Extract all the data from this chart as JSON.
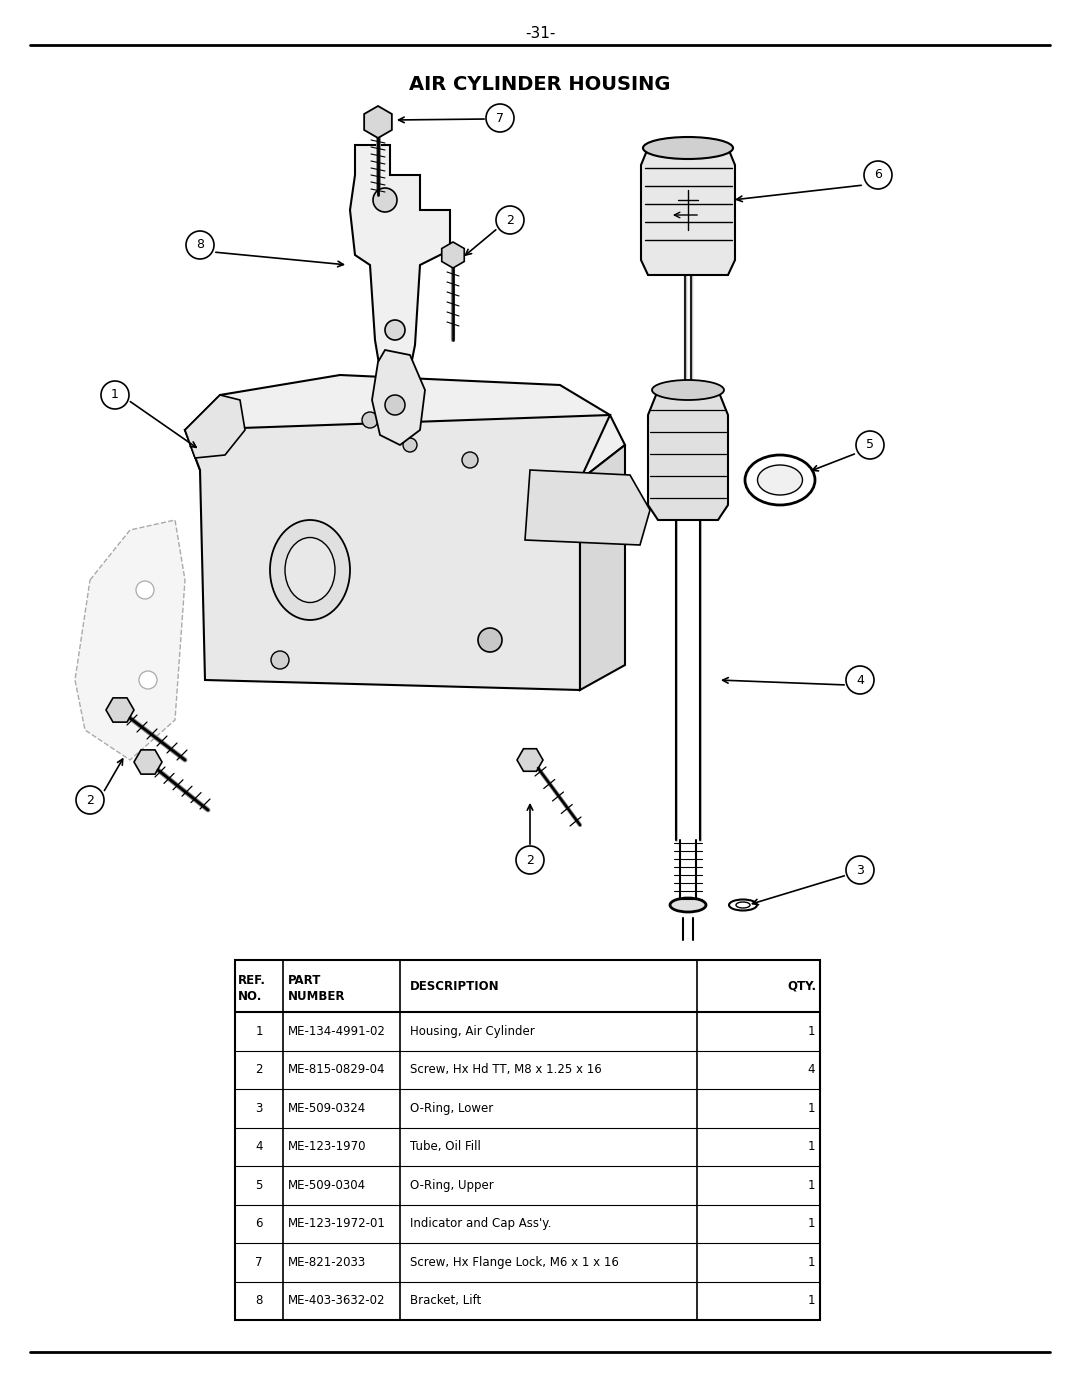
{
  "page_number": "-31-",
  "title": "AIR CYLINDER HOUSING",
  "background_color": "#ffffff",
  "table_rows": [
    [
      "1",
      "ME-134-4991-02",
      "Housing, Air Cylinder",
      "1"
    ],
    [
      "2",
      "ME-815-0829-04",
      "Screw, Hx Hd TT, M8 x 1.25 x 16",
      "4"
    ],
    [
      "3",
      "ME-509-0324",
      "O-Ring, Lower",
      "1"
    ],
    [
      "4",
      "ME-123-1970",
      "Tube, Oil Fill",
      "1"
    ],
    [
      "5",
      "ME-509-0304",
      "O-Ring, Upper",
      "1"
    ],
    [
      "6",
      "ME-123-1972-01",
      "Indicator and Cap Ass'y.",
      "1"
    ],
    [
      "7",
      "ME-821-2033",
      "Screw, Hx Flange Lock, M6 x 1 x 16",
      "1"
    ],
    [
      "8",
      "ME-403-3632-02",
      "Bracket, Lift",
      "1"
    ]
  ]
}
